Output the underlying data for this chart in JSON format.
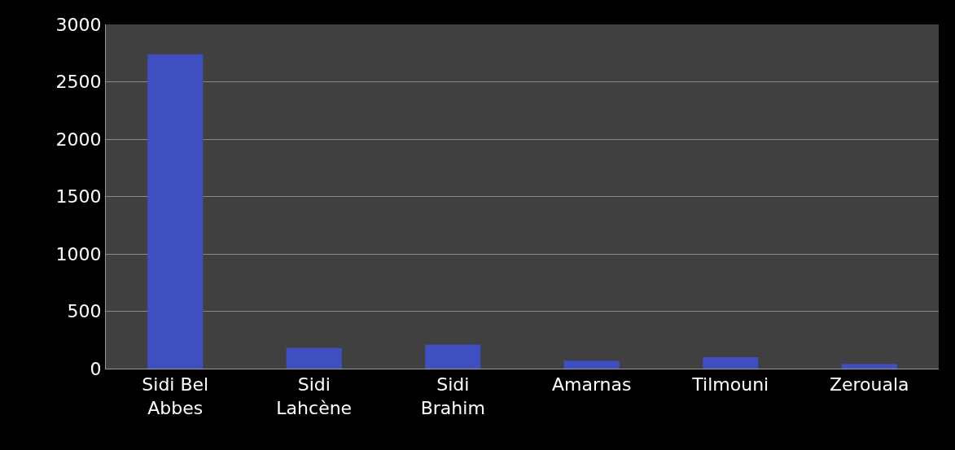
{
  "chart_data": {
    "type": "bar",
    "categories": [
      "Sidi Bel\nAbbes",
      "Sidi\nLahcène",
      "Sidi\nBrahim",
      "Amarnas",
      "Tilmouni",
      "Zerouala"
    ],
    "values": [
      2740,
      180,
      210,
      70,
      100,
      40
    ],
    "color": "#3f4fc0",
    "ylim": [
      0,
      3000
    ],
    "yticks": [
      0,
      500,
      1000,
      1500,
      2000,
      2500,
      3000
    ],
    "grid": "y"
  }
}
